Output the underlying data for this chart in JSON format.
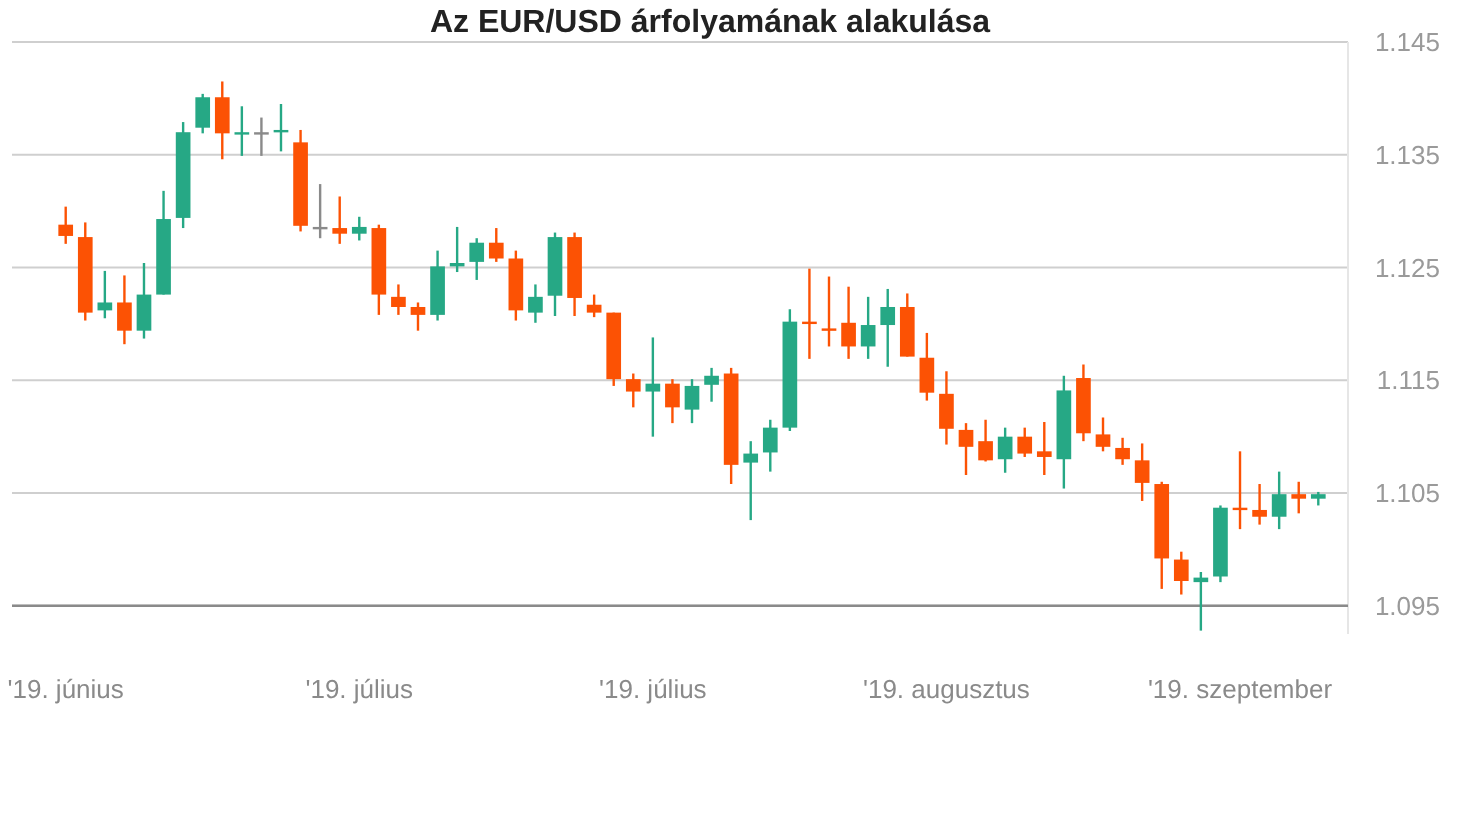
{
  "chart_data": {
    "type": "candlestick",
    "title": "Az EUR/USD árfolyamának alakulása",
    "categories": [
      "'19. június",
      null,
      null,
      null,
      null,
      null,
      null,
      null,
      null,
      null,
      null,
      null,
      null,
      null,
      null,
      "'19. július",
      null,
      null,
      null,
      null,
      null,
      null,
      null,
      null,
      null,
      null,
      null,
      null,
      null,
      null,
      "'19. július",
      null,
      null,
      null,
      null,
      null,
      null,
      null,
      null,
      null,
      null,
      null,
      null,
      null,
      null,
      "'19. augusztus",
      null,
      null,
      null,
      null,
      null,
      null,
      null,
      null,
      null,
      null,
      null,
      null,
      null,
      null,
      "'19. szeptember",
      null,
      null,
      null,
      null
    ],
    "ohlc": [
      [
        1.1288,
        1.1304,
        1.1271,
        1.1278
      ],
      [
        1.1277,
        1.129,
        1.1203,
        1.121
      ],
      [
        1.1212,
        1.1247,
        1.1205,
        1.1219
      ],
      [
        1.1219,
        1.1243,
        1.1182,
        1.1194
      ],
      [
        1.1194,
        1.1254,
        1.1187,
        1.1226
      ],
      [
        1.1226,
        1.1318,
        1.1226,
        1.1293
      ],
      [
        1.1294,
        1.1379,
        1.1285,
        1.137
      ],
      [
        1.1374,
        1.1404,
        1.1369,
        1.1401
      ],
      [
        1.1401,
        1.1415,
        1.1346,
        1.1369
      ],
      [
        1.1369,
        1.1393,
        1.1349,
        1.137
      ],
      [
        1.137,
        1.1383,
        1.1349,
        1.137
      ],
      [
        1.137,
        1.1395,
        1.1353,
        1.1372
      ],
      [
        1.1361,
        1.1372,
        1.1282,
        1.1287
      ],
      [
        1.1286,
        1.1324,
        1.1276,
        1.1286
      ],
      [
        1.1285,
        1.1313,
        1.1271,
        1.128
      ],
      [
        1.128,
        1.1295,
        1.1274,
        1.1286
      ],
      [
        1.1285,
        1.1288,
        1.1208,
        1.1226
      ],
      [
        1.1224,
        1.1235,
        1.1208,
        1.1215
      ],
      [
        1.1215,
        1.1219,
        1.1194,
        1.1208
      ],
      [
        1.1208,
        1.1265,
        1.1203,
        1.1251
      ],
      [
        1.1251,
        1.1286,
        1.1246,
        1.1254
      ],
      [
        1.1255,
        1.1276,
        1.1239,
        1.1272
      ],
      [
        1.1272,
        1.1285,
        1.1255,
        1.1258
      ],
      [
        1.1258,
        1.1265,
        1.1203,
        1.1212
      ],
      [
        1.121,
        1.1235,
        1.1201,
        1.1224
      ],
      [
        1.1225,
        1.1281,
        1.1207,
        1.1277
      ],
      [
        1.1277,
        1.1281,
        1.1207,
        1.1223
      ],
      [
        1.1217,
        1.1226,
        1.1206,
        1.121
      ],
      [
        1.121,
        1.121,
        1.1145,
        1.1151
      ],
      [
        1.1151,
        1.1156,
        1.1126,
        1.114
      ],
      [
        1.114,
        1.1188,
        1.11,
        1.1147
      ],
      [
        1.1147,
        1.1151,
        1.1112,
        1.1126
      ],
      [
        1.1124,
        1.1151,
        1.1112,
        1.1145
      ],
      [
        1.1146,
        1.1161,
        1.1131,
        1.1154
      ],
      [
        1.1156,
        1.1161,
        1.1058,
        1.1075
      ],
      [
        1.1077,
        1.1096,
        1.1026,
        1.1085
      ],
      [
        1.1086,
        1.1115,
        1.1069,
        1.1108
      ],
      [
        1.1108,
        1.1213,
        1.1105,
        1.1202
      ],
      [
        1.1202,
        1.1249,
        1.1169,
        1.1201
      ],
      [
        1.1196,
        1.1242,
        1.118,
        1.1195
      ],
      [
        1.1201,
        1.1233,
        1.1169,
        1.118
      ],
      [
        1.118,
        1.1224,
        1.1169,
        1.1199
      ],
      [
        1.1199,
        1.1231,
        1.1162,
        1.1215
      ],
      [
        1.1215,
        1.1227,
        1.1171,
        1.1171
      ],
      [
        1.117,
        1.1192,
        1.1132,
        1.1139
      ],
      [
        1.1138,
        1.1158,
        1.1093,
        1.1107
      ],
      [
        1.1106,
        1.1112,
        1.1066,
        1.1091
      ],
      [
        1.1096,
        1.1115,
        1.1078,
        1.1079
      ],
      [
        1.108,
        1.1108,
        1.1068,
        1.11
      ],
      [
        1.11,
        1.1108,
        1.1082,
        1.1085
      ],
      [
        1.1087,
        1.1113,
        1.1066,
        1.1082
      ],
      [
        1.108,
        1.1154,
        1.1054,
        1.1141
      ],
      [
        1.1152,
        1.1164,
        1.1096,
        1.1103
      ],
      [
        1.1102,
        1.1117,
        1.1087,
        1.1091
      ],
      [
        1.109,
        1.1099,
        1.1075,
        1.108
      ],
      [
        1.1079,
        1.1094,
        1.1043,
        1.1059
      ],
      [
        1.1058,
        1.106,
        1.0965,
        1.0992
      ],
      [
        1.0991,
        1.0998,
        1.096,
        1.0972
      ],
      [
        1.0971,
        1.098,
        1.0928,
        1.0975
      ],
      [
        1.0976,
        1.1039,
        1.0971,
        1.1037
      ],
      [
        1.1037,
        1.1087,
        1.1018,
        1.1036
      ],
      [
        1.1035,
        1.1058,
        1.1022,
        1.1029
      ],
      [
        1.1029,
        1.1069,
        1.1018,
        1.1049
      ],
      [
        1.1049,
        1.106,
        1.1032,
        1.1045
      ],
      [
        1.1045,
        1.1051,
        1.1039,
        1.1049
      ]
    ],
    "colors": [
      "#fc5204",
      "#fc5204",
      "#26a885",
      "#fc5204",
      "#26a885",
      "#26a885",
      "#26a885",
      "#26a885",
      "#fc5204",
      "#26a885",
      "#8a8a8a",
      "#26a885",
      "#fc5204",
      "#8a8a8a",
      "#fc5204",
      "#26a885",
      "#fc5204",
      "#fc5204",
      "#fc5204",
      "#26a885",
      "#26a885",
      "#26a885",
      "#fc5204",
      "#fc5204",
      "#26a885",
      "#26a885",
      "#fc5204",
      "#fc5204",
      "#fc5204",
      "#fc5204",
      "#26a885",
      "#fc5204",
      "#26a885",
      "#26a885",
      "#fc5204",
      "#26a885",
      "#26a885",
      "#26a885",
      "#fc5204",
      "#fc5204",
      "#fc5204",
      "#26a885",
      "#26a885",
      "#fc5204",
      "#fc5204",
      "#fc5204",
      "#fc5204",
      "#fc5204",
      "#26a885",
      "#fc5204",
      "#fc5204",
      "#26a885",
      "#fc5204",
      "#fc5204",
      "#fc5204",
      "#fc5204",
      "#fc5204",
      "#fc5204",
      "#26a885",
      "#26a885",
      "#fc5204",
      "#fc5204",
      "#26a885",
      "#fc5204",
      "#26a885"
    ],
    "ylim": [
      1.0925,
      1.145
    ],
    "yticks": [
      1.095,
      1.105,
      1.115,
      1.125,
      1.135,
      1.145
    ],
    "grid": "y",
    "ref_lines": [
      {
        "axis": "y",
        "value": 1.095,
        "color": "#8a8a8a"
      }
    ]
  }
}
